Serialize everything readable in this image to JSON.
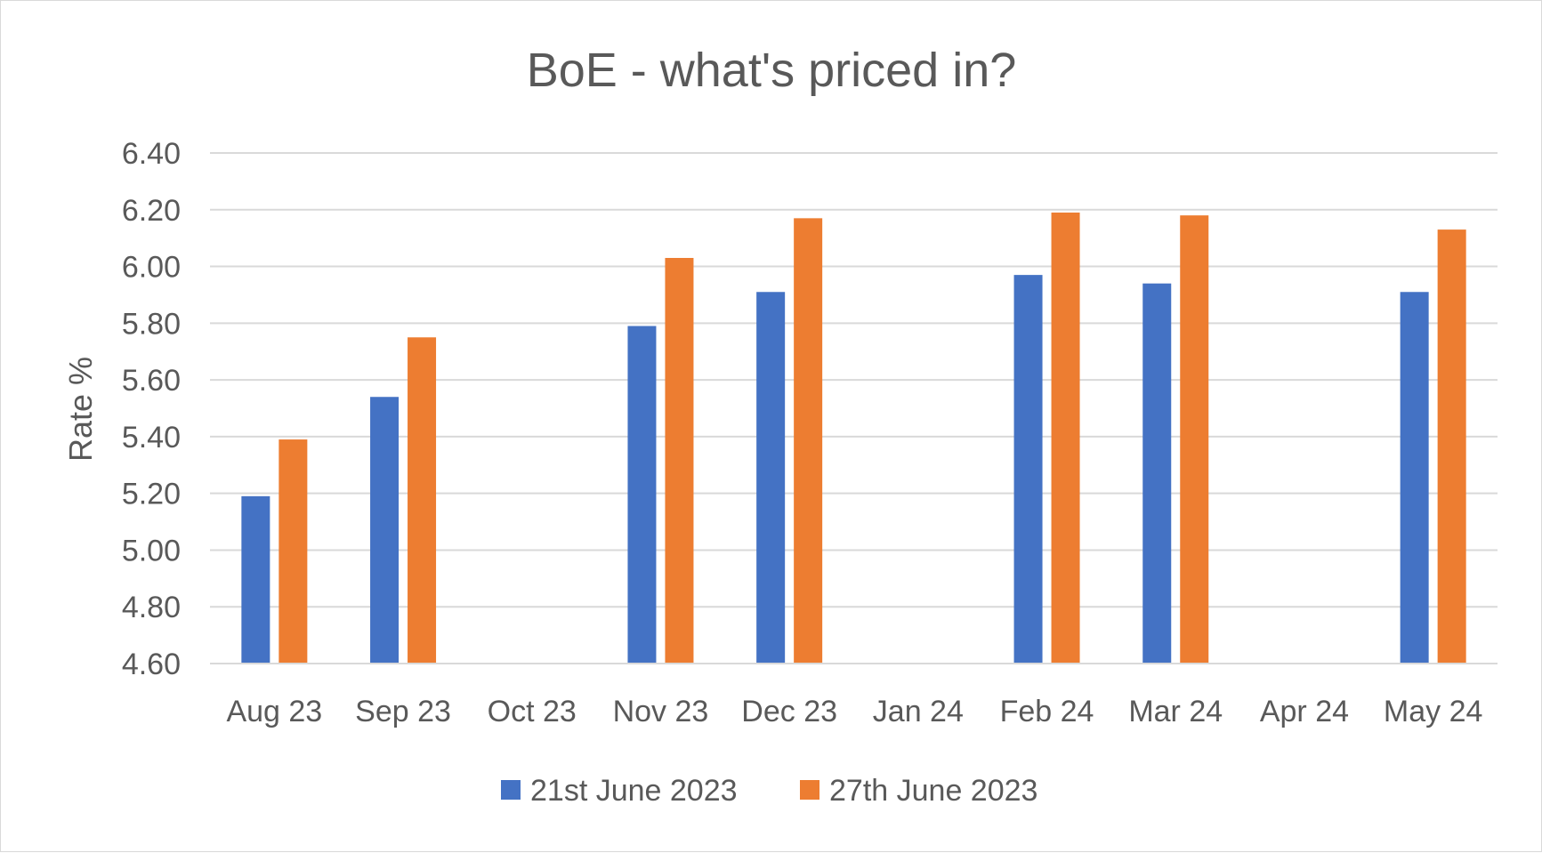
{
  "chart_data": {
    "type": "bar",
    "title": "BoE - what's priced in?",
    "xlabel": "",
    "ylabel": "Rate %",
    "ylim": [
      4.6,
      6.4
    ],
    "ytick_step": 0.2,
    "ytick_labels": [
      "4.60",
      "4.80",
      "5.00",
      "5.20",
      "5.40",
      "5.60",
      "5.80",
      "6.00",
      "6.20",
      "6.40"
    ],
    "grid": true,
    "legend_position": "bottom",
    "categories": [
      "Aug 23",
      "Sep 23",
      "Oct 23",
      "Nov 23",
      "Dec 23",
      "Jan 24",
      "Feb 24",
      "Mar 24",
      "Apr 24",
      "May 24"
    ],
    "series": [
      {
        "name": "21st June 2023",
        "color": "#4472c4",
        "values": [
          5.19,
          5.54,
          null,
          5.79,
          5.91,
          null,
          5.97,
          5.94,
          null,
          5.91
        ]
      },
      {
        "name": "27th June 2023",
        "color": "#ed7d31",
        "values": [
          5.39,
          5.75,
          null,
          6.03,
          6.17,
          null,
          6.19,
          6.18,
          null,
          6.13
        ]
      }
    ]
  }
}
